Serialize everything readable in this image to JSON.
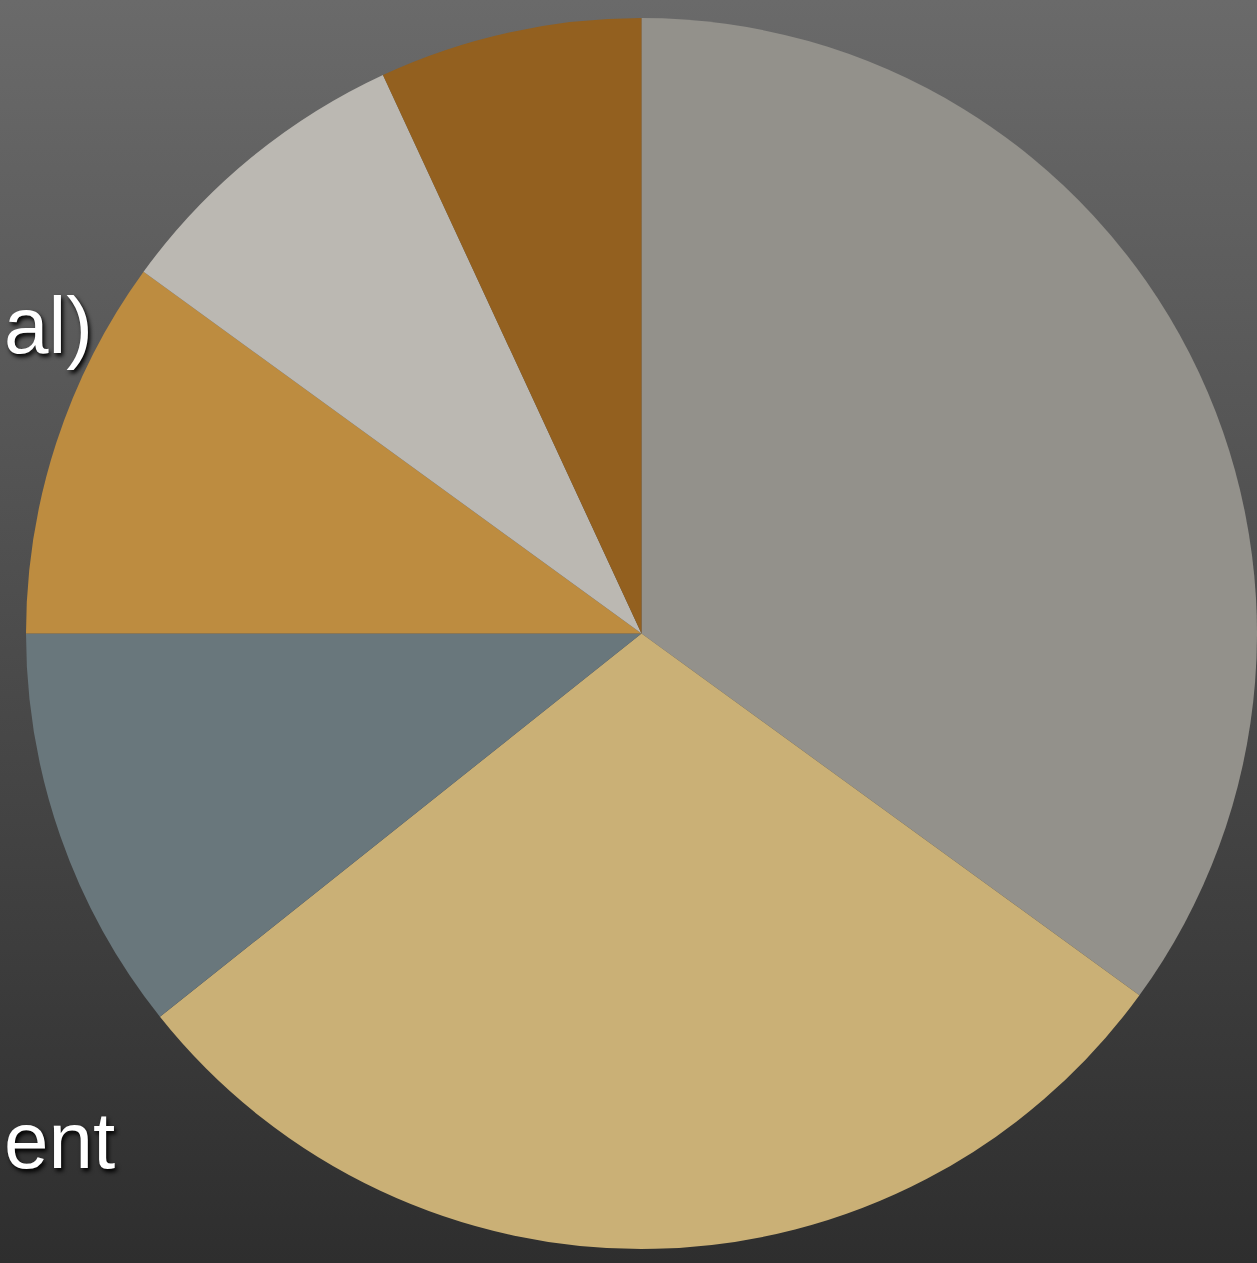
{
  "chart_data": {
    "type": "pie",
    "categories": [
      null,
      null,
      null,
      null,
      null,
      null
    ],
    "values": [
      35.0,
      29.3,
      10.7,
      10.0,
      8.1,
      6.9
    ],
    "colors": [
      "#93918b",
      "#cab076",
      "#69777c",
      "#bd8c40",
      "#bbb8b2",
      "#93601f"
    ],
    "annotations": [
      "al)",
      "ent"
    ]
  }
}
